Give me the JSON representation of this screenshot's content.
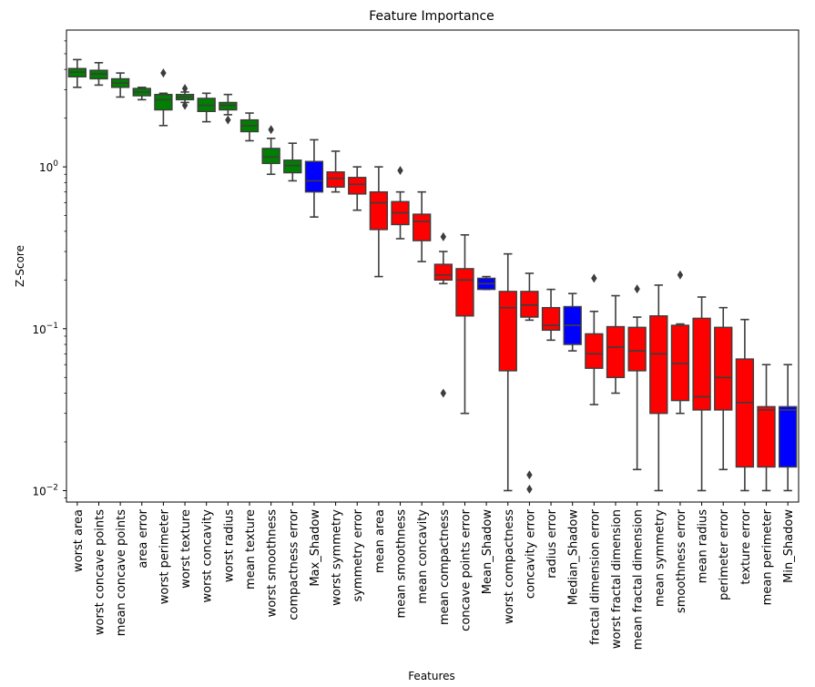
{
  "chart_data": {
    "type": "boxplot",
    "title": "Feature Importance",
    "xlabel": "Features",
    "ylabel": "Z-Score",
    "yscale": "log",
    "ylim": [
      0.0085,
      7
    ],
    "yticks": [
      {
        "value": 0.01,
        "base": "10",
        "exp": "−2"
      },
      {
        "value": 0.1,
        "base": "10",
        "exp": "−1"
      },
      {
        "value": 1,
        "base": "10",
        "exp": "0"
      }
    ],
    "grid": false,
    "colors": {
      "Confirmed": "#008000",
      "Rejected": "#ff0000",
      "Shadow": "#0000ff",
      "median": "#3d3d3d"
    },
    "boxes": [
      {
        "name": "worst area",
        "group": "Confirmed",
        "whislo": 3.1,
        "q1": 3.6,
        "med": 3.85,
        "q3": 4.05,
        "whishi": 4.6,
        "fliers": []
      },
      {
        "name": "worst concave points",
        "group": "Confirmed",
        "whislo": 3.2,
        "q1": 3.5,
        "med": 3.75,
        "q3": 3.95,
        "whishi": 4.4,
        "fliers": []
      },
      {
        "name": "mean concave points",
        "group": "Confirmed",
        "whislo": 2.7,
        "q1": 3.1,
        "med": 3.3,
        "q3": 3.5,
        "whishi": 3.8,
        "fliers": []
      },
      {
        "name": "area error",
        "group": "Confirmed",
        "whislo": 2.6,
        "q1": 2.75,
        "med": 2.9,
        "q3": 3.05,
        "whishi": 3.1,
        "fliers": []
      },
      {
        "name": "worst perimeter",
        "group": "Confirmed",
        "whislo": 1.8,
        "q1": 2.25,
        "med": 2.6,
        "q3": 2.8,
        "whishi": 2.85,
        "fliers": [
          3.8
        ]
      },
      {
        "name": "worst texture",
        "group": "Confirmed",
        "whislo": 2.5,
        "q1": 2.6,
        "med": 2.7,
        "q3": 2.8,
        "whishi": 2.9,
        "fliers": [
          2.4,
          3.05
        ]
      },
      {
        "name": "worst concavity",
        "group": "Confirmed",
        "whislo": 1.9,
        "q1": 2.2,
        "med": 2.4,
        "q3": 2.65,
        "whishi": 2.85,
        "fliers": []
      },
      {
        "name": "worst radius",
        "group": "Confirmed",
        "whislo": 2.1,
        "q1": 2.25,
        "med": 2.4,
        "q3": 2.5,
        "whishi": 2.8,
        "fliers": [
          1.95
        ]
      },
      {
        "name": "mean texture",
        "group": "Confirmed",
        "whislo": 1.45,
        "q1": 1.65,
        "med": 1.8,
        "q3": 1.95,
        "whishi": 2.15,
        "fliers": []
      },
      {
        "name": "worst smoothness",
        "group": "Confirmed",
        "whislo": 0.9,
        "q1": 1.05,
        "med": 1.15,
        "q3": 1.3,
        "whishi": 1.5,
        "fliers": [
          1.7
        ]
      },
      {
        "name": "compactness error",
        "group": "Confirmed",
        "whislo": 0.82,
        "q1": 0.92,
        "med": 1.02,
        "q3": 1.1,
        "whishi": 1.4,
        "fliers": []
      },
      {
        "name": "Max_Shadow",
        "group": "Shadow",
        "whislo": 0.49,
        "q1": 0.7,
        "med": 0.82,
        "q3": 1.08,
        "whishi": 1.47,
        "fliers": []
      },
      {
        "name": "worst symmetry",
        "group": "Rejected",
        "whislo": 0.7,
        "q1": 0.75,
        "med": 0.85,
        "q3": 0.93,
        "whishi": 1.25,
        "fliers": []
      },
      {
        "name": "symmetry error",
        "group": "Rejected",
        "whislo": 0.54,
        "q1": 0.68,
        "med": 0.78,
        "q3": 0.86,
        "whishi": 1.0,
        "fliers": []
      },
      {
        "name": "mean area",
        "group": "Rejected",
        "whislo": 0.21,
        "q1": 0.41,
        "med": 0.6,
        "q3": 0.7,
        "whishi": 1.0,
        "fliers": []
      },
      {
        "name": "mean smoothness",
        "group": "Rejected",
        "whislo": 0.36,
        "q1": 0.44,
        "med": 0.52,
        "q3": 0.61,
        "whishi": 0.7,
        "fliers": [
          0.95
        ]
      },
      {
        "name": "mean concavity",
        "group": "Rejected",
        "whislo": 0.26,
        "q1": 0.35,
        "med": 0.46,
        "q3": 0.51,
        "whishi": 0.7,
        "fliers": []
      },
      {
        "name": "mean compactness",
        "group": "Rejected",
        "whislo": 0.19,
        "q1": 0.2,
        "med": 0.215,
        "q3": 0.25,
        "whishi": 0.3,
        "fliers": [
          0.04,
          0.37
        ]
      },
      {
        "name": "concave points error",
        "group": "Rejected",
        "whislo": 0.03,
        "q1": 0.12,
        "med": 0.2,
        "q3": 0.235,
        "whishi": 0.38,
        "fliers": []
      },
      {
        "name": "Mean_Shadow",
        "group": "Shadow",
        "whislo": 0.175,
        "q1": 0.175,
        "med": 0.19,
        "q3": 0.205,
        "whishi": 0.21,
        "fliers": []
      },
      {
        "name": "worst compactness",
        "group": "Rejected",
        "whislo": 0.01,
        "q1": 0.055,
        "med": 0.135,
        "q3": 0.17,
        "whishi": 0.29,
        "fliers": []
      },
      {
        "name": "concavity error",
        "group": "Rejected",
        "whislo": 0.113,
        "q1": 0.118,
        "med": 0.14,
        "q3": 0.17,
        "whishi": 0.22,
        "fliers": [
          0.0125,
          0.0102
        ]
      },
      {
        "name": "radius error",
        "group": "Rejected",
        "whislo": 0.085,
        "q1": 0.098,
        "med": 0.105,
        "q3": 0.135,
        "whishi": 0.175,
        "fliers": []
      },
      {
        "name": "Median_Shadow",
        "group": "Shadow",
        "whislo": 0.073,
        "q1": 0.08,
        "med": 0.105,
        "q3": 0.137,
        "whishi": 0.165,
        "fliers": []
      },
      {
        "name": "fractal dimension error",
        "group": "Rejected",
        "whislo": 0.034,
        "q1": 0.057,
        "med": 0.07,
        "q3": 0.093,
        "whishi": 0.128,
        "fliers": [
          0.205
        ]
      },
      {
        "name": "worst fractal dimension",
        "group": "Rejected",
        "whislo": 0.04,
        "q1": 0.05,
        "med": 0.077,
        "q3": 0.103,
        "whishi": 0.16,
        "fliers": []
      },
      {
        "name": "mean fractal dimension",
        "group": "Rejected",
        "whislo": 0.0135,
        "q1": 0.055,
        "med": 0.073,
        "q3": 0.102,
        "whishi": 0.118,
        "fliers": [
          0.176
        ]
      },
      {
        "name": "mean symmetry",
        "group": "Rejected",
        "whislo": 0.01,
        "q1": 0.03,
        "med": 0.07,
        "q3": 0.12,
        "whishi": 0.186,
        "fliers": []
      },
      {
        "name": "smoothness error",
        "group": "Rejected",
        "whislo": 0.03,
        "q1": 0.036,
        "med": 0.061,
        "q3": 0.105,
        "whishi": 0.107,
        "fliers": [
          0.215
        ]
      },
      {
        "name": "mean radius",
        "group": "Rejected",
        "whislo": 0.01,
        "q1": 0.0315,
        "med": 0.038,
        "q3": 0.116,
        "whishi": 0.157,
        "fliers": []
      },
      {
        "name": "perimeter error",
        "group": "Rejected",
        "whislo": 0.0135,
        "q1": 0.0315,
        "med": 0.05,
        "q3": 0.102,
        "whishi": 0.135,
        "fliers": []
      },
      {
        "name": "texture error",
        "group": "Rejected",
        "whislo": 0.01,
        "q1": 0.014,
        "med": 0.035,
        "q3": 0.065,
        "whishi": 0.114,
        "fliers": []
      },
      {
        "name": "mean perimeter",
        "group": "Rejected",
        "whislo": 0.01,
        "q1": 0.014,
        "med": 0.0315,
        "q3": 0.033,
        "whishi": 0.06,
        "fliers": []
      },
      {
        "name": "Min_Shadow",
        "group": "Shadow",
        "whislo": 0.01,
        "q1": 0.014,
        "med": 0.0315,
        "q3": 0.033,
        "whishi": 0.06,
        "fliers": []
      }
    ]
  }
}
